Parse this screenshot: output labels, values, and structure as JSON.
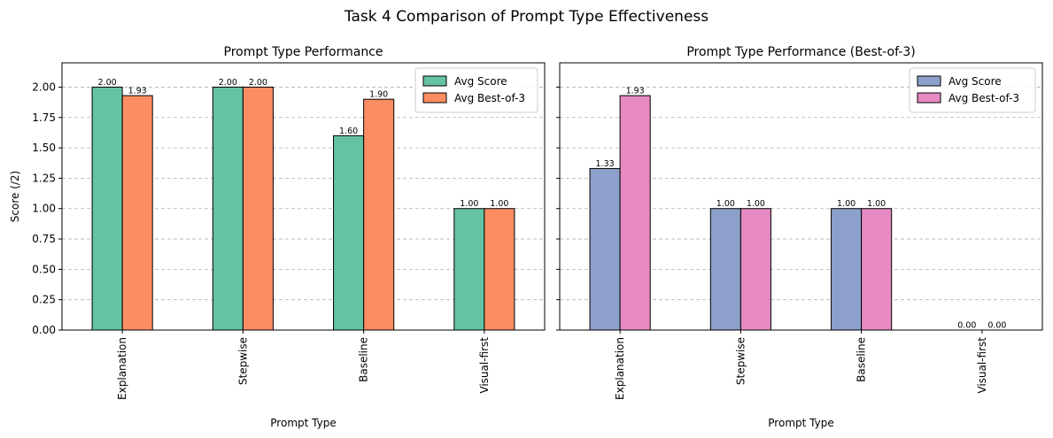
{
  "title": "Task 4 Comparison of Prompt Type Effectiveness",
  "chart_data": [
    {
      "type": "bar",
      "title": "Prompt Type Performance",
      "xlabel": "Prompt Type",
      "ylabel": "Score (/2)",
      "categories": [
        "Explanation",
        "Stepwise",
        "Baseline",
        "Visual-first"
      ],
      "series": [
        {
          "name": "Avg Score",
          "values": [
            2.0,
            2.0,
            1.6,
            1.0
          ],
          "labels": [
            "2.00",
            "2.00",
            "1.60",
            "1.00"
          ],
          "color": "#66c2a5"
        },
        {
          "name": "Avg Best-of-3",
          "values": [
            1.93,
            2.0,
            1.9,
            1.0
          ],
          "labels": [
            "1.93",
            "2.00",
            "1.90",
            "1.00"
          ],
          "color": "#fc8d62"
        }
      ],
      "ylim": [
        0,
        2.2
      ],
      "yticks": [
        "0.00",
        "0.25",
        "0.50",
        "0.75",
        "1.00",
        "1.25",
        "1.50",
        "1.75",
        "2.00"
      ],
      "grid": "y",
      "legend": "top-right"
    },
    {
      "type": "bar",
      "title": "Prompt Type Performance (Best-of-3)",
      "xlabel": "Prompt Type",
      "ylabel": "",
      "categories": [
        "Explanation",
        "Stepwise",
        "Baseline",
        "Visual-first"
      ],
      "series": [
        {
          "name": "Avg Score",
          "values": [
            1.33,
            1.0,
            1.0,
            0.0
          ],
          "labels": [
            "1.33",
            "1.00",
            "1.00",
            "0.00"
          ],
          "color": "#8da0cb"
        },
        {
          "name": "Avg Best-of-3",
          "values": [
            1.93,
            1.0,
            1.0,
            0.0
          ],
          "labels": [
            "1.93",
            "1.00",
            "1.00",
            "0.00"
          ],
          "color": "#e78ac3"
        }
      ],
      "ylim": [
        0,
        2.2
      ],
      "sharey": true,
      "grid": "y",
      "legend": "top-right"
    }
  ]
}
